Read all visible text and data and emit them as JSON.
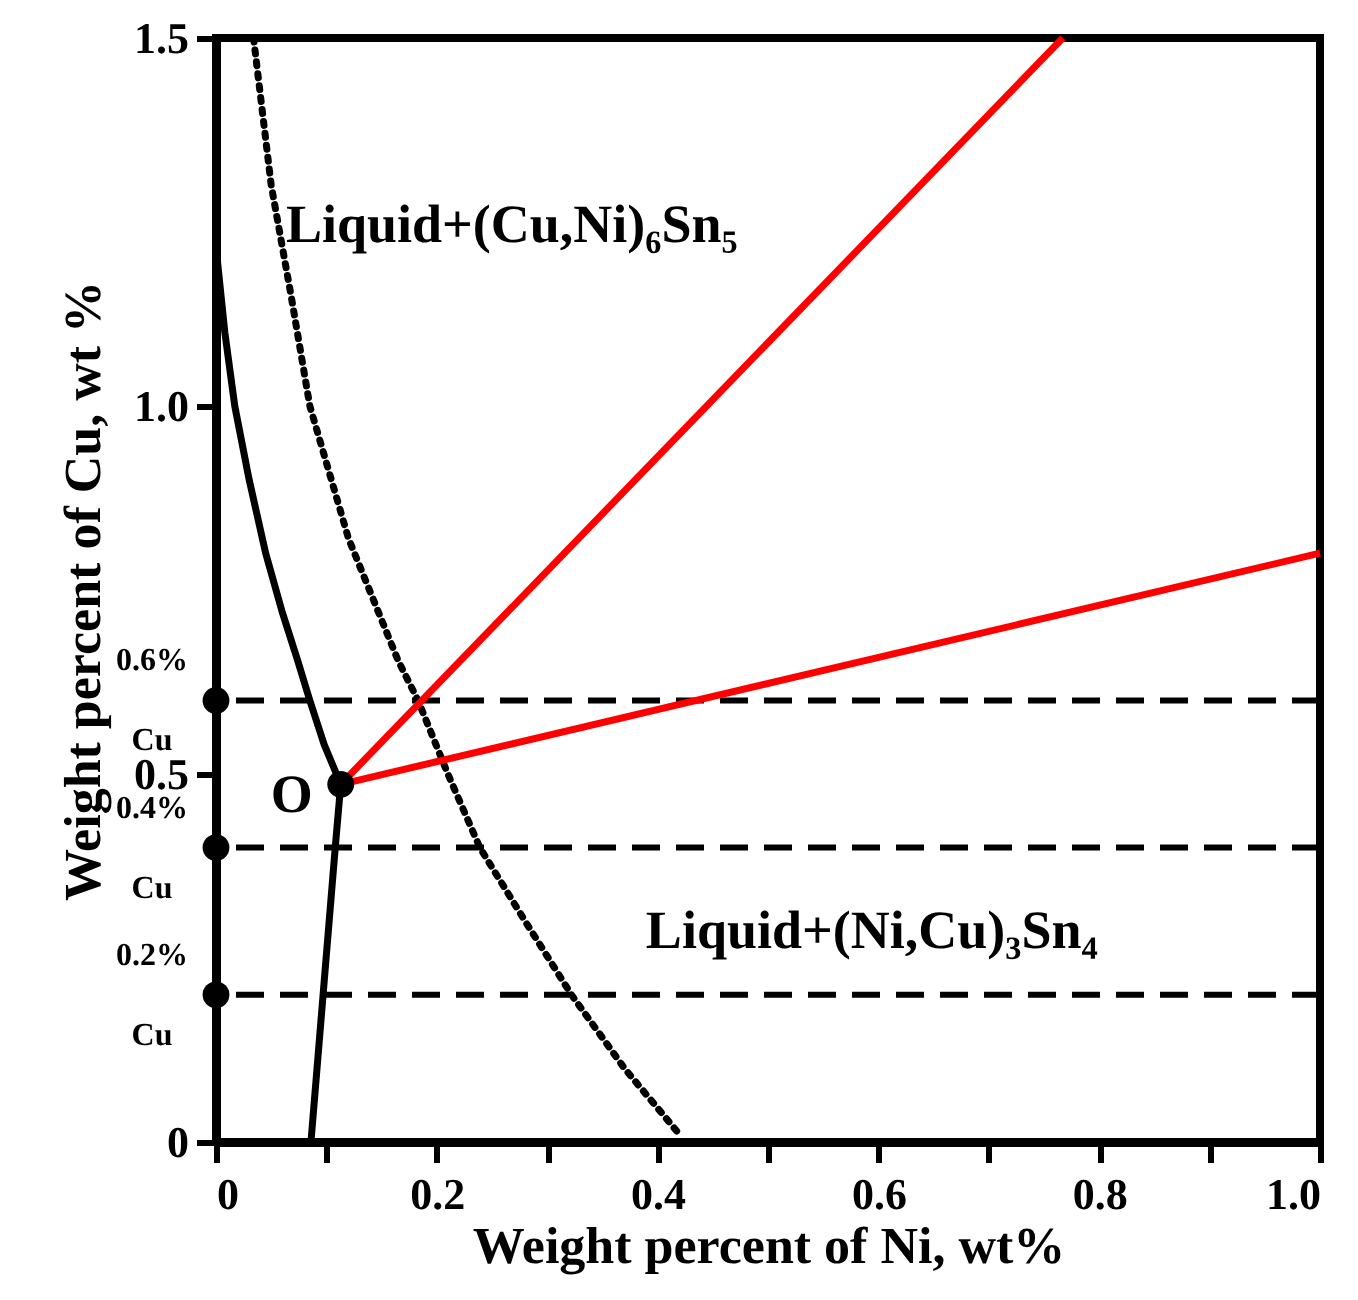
{
  "chart_data": {
    "type": "line",
    "xlabel": "Weight percent of Ni, wt%",
    "ylabel": "Weight percent of Cu, wt %",
    "xlim": [
      0,
      1.0
    ],
    "ylim": [
      0,
      1.5
    ],
    "xticks": [
      0,
      {
        "value": 0.1,
        "label": null
      },
      0.2,
      {
        "value": 0.3,
        "label": null
      },
      0.4,
      {
        "value": 0.5,
        "label": null
      },
      0.6,
      {
        "value": 0.7,
        "label": null
      },
      0.8,
      {
        "value": 0.9,
        "label": null
      },
      {
        "value": 1.0,
        "label": "1.0"
      }
    ],
    "yticks": [
      0,
      0.5,
      {
        "value": 1.0,
        "label": "1.0"
      },
      1.5
    ],
    "grid": false,
    "series": [
      {
        "color": "#000000",
        "line_style": "solid",
        "x": [
          0,
          0.008,
          0.017,
          0.03,
          0.045,
          0.06,
          0.074,
          0.085,
          0.098,
          0.113,
          0.108,
          0.097,
          0.086
        ],
        "values": [
          1.216,
          1.1,
          1.0,
          0.9,
          0.8,
          0.72,
          0.654,
          0.6,
          0.54,
          0.486,
          0.4,
          0.2,
          0
        ]
      },
      {
        "color": "#000000",
        "line_style": "dotted",
        "x": [
          0.034,
          0.05,
          0.068,
          0.085,
          0.12,
          0.165,
          0.183,
          0.21,
          0.239,
          0.28,
          0.322,
          0.37,
          0.42
        ],
        "values": [
          1.5,
          1.3,
          1.15,
          1.0,
          0.82,
          0.654,
          0.6,
          0.5,
          0.4,
          0.3,
          0.2,
          0.1,
          0.01
        ]
      },
      {
        "color": "#ff0000",
        "line_style": "solid",
        "x": [
          0.113,
          0.767
        ],
        "values": [
          0.486,
          1.5
        ]
      },
      {
        "color": "#ff0000",
        "line_style": "solid",
        "x": [
          0.113,
          1.0
        ],
        "values": [
          0.486,
          0.8
        ]
      },
      {
        "type": "scatter",
        "color": "#000000",
        "marker": "circle",
        "x": [
          0,
          0,
          0,
          0.113
        ],
        "values": [
          0.6,
          0.4,
          0.2,
          0.486
        ]
      }
    ],
    "ref_lines": [
      {
        "axis": "y",
        "value": 0.6,
        "label": "0.6% Cu",
        "color": "#000000",
        "line_style": "dashed"
      },
      {
        "axis": "y",
        "value": 0.4,
        "label": "0.4% Cu",
        "color": "#000000",
        "line_style": "dashed"
      },
      {
        "axis": "y",
        "value": 0.2,
        "label": "0.2% Cu",
        "color": "#000000",
        "line_style": "dashed"
      }
    ],
    "annotations": [
      "Liquid+(Cu,Ni)₆Sn₅",
      {
        "text": "O",
        "x": 0.113,
        "y": 0.486
      },
      "Liquid+(Ni,Cu)₃Sn₄"
    ]
  }
}
